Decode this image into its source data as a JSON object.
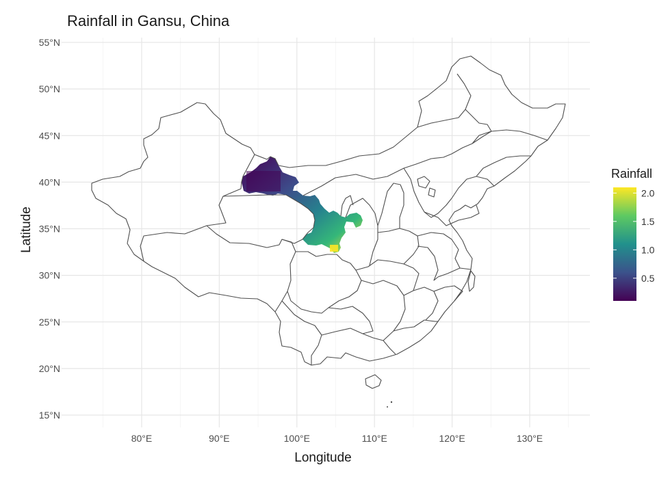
{
  "title": "Rainfall in Gansu, China",
  "chart_data": {
    "type": "heatmap",
    "title": "Rainfall in Gansu, China",
    "xlabel": "Longitude",
    "ylabel": "Latitude",
    "x_ticks": [
      "80°E",
      "90°E",
      "100°E",
      "110°E",
      "120°E",
      "130°E"
    ],
    "x_tick_values": [
      80,
      90,
      100,
      110,
      120,
      130
    ],
    "y_ticks": [
      "15°N",
      "20°N",
      "25°N",
      "30°N",
      "35°N",
      "40°N",
      "45°N",
      "50°N",
      "55°N"
    ],
    "y_tick_values": [
      15,
      20,
      25,
      30,
      35,
      40,
      45,
      50,
      55
    ],
    "xlim": [
      71,
      138
    ],
    "ylim": [
      14,
      56
    ],
    "grid": true,
    "legend": {
      "title": "Rainfall",
      "placement": "right",
      "labels": [
        "2.0",
        "1.5",
        "1.0",
        "0.5"
      ],
      "values": [
        2.0,
        1.5,
        1.0,
        0.5
      ],
      "range": [
        0.1,
        2.1
      ],
      "palette": [
        "#440154",
        "#3b528b",
        "#21918c",
        "#5ec962",
        "#fde725"
      ]
    },
    "colors": {
      "base": "#fde725",
      "low": "#440154"
    },
    "rainfall_by_longitude": [
      {
        "lon": 93.5,
        "lat": 40.0,
        "rainfall": 0.15
      },
      {
        "lon": 96.0,
        "lat": 40.5,
        "rainfall": 0.15
      },
      {
        "lon": 98.0,
        "lat": 40.0,
        "rainfall": 0.2
      },
      {
        "lon": 99.5,
        "lat": 39.0,
        "rainfall": 0.3
      },
      {
        "lon": 101.0,
        "lat": 38.0,
        "rainfall": 0.5
      },
      {
        "lon": 102.5,
        "lat": 37.3,
        "rainfall": 0.7
      },
      {
        "lon": 103.5,
        "lat": 36.2,
        "rainfall": 0.95
      },
      {
        "lon": 104.5,
        "lat": 35.2,
        "rainfall": 1.2
      },
      {
        "lon": 106.0,
        "lat": 35.6,
        "rainfall": 1.15
      },
      {
        "lon": 107.5,
        "lat": 35.8,
        "rainfall": 1.2
      },
      {
        "lon": 102.5,
        "lat": 34.2,
        "rainfall": 1.55
      },
      {
        "lon": 104.5,
        "lat": 34.0,
        "rainfall": 1.7
      },
      {
        "lon": 105.0,
        "lat": 33.2,
        "rainfall": 2.0
      }
    ]
  }
}
